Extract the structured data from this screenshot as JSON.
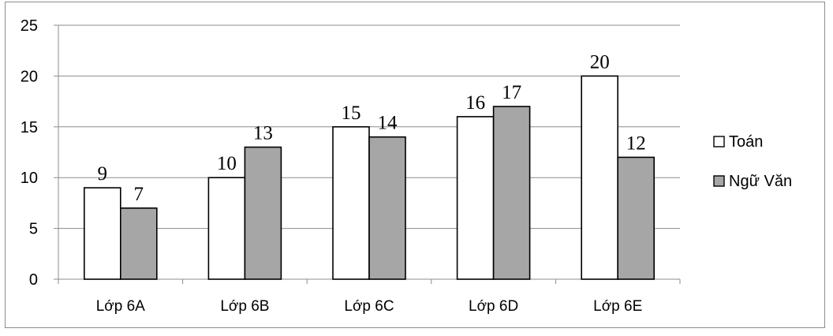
{
  "chart_data": {
    "type": "bar",
    "categories": [
      "Lớp 6A",
      "Lớp 6B",
      "Lớp 6C",
      "Lớp 6D",
      "Lớp 6E"
    ],
    "series": [
      {
        "name": "Toán",
        "values": [
          9,
          10,
          15,
          16,
          20
        ],
        "color": "#ffffff"
      },
      {
        "name": "Ngữ Văn",
        "values": [
          7,
          13,
          14,
          17,
          12
        ],
        "color": "#a6a6a6"
      }
    ],
    "yticks": [
      0,
      5,
      10,
      15,
      20,
      25
    ],
    "ylim": [
      0,
      25
    ],
    "grid": true,
    "legend": "right"
  }
}
